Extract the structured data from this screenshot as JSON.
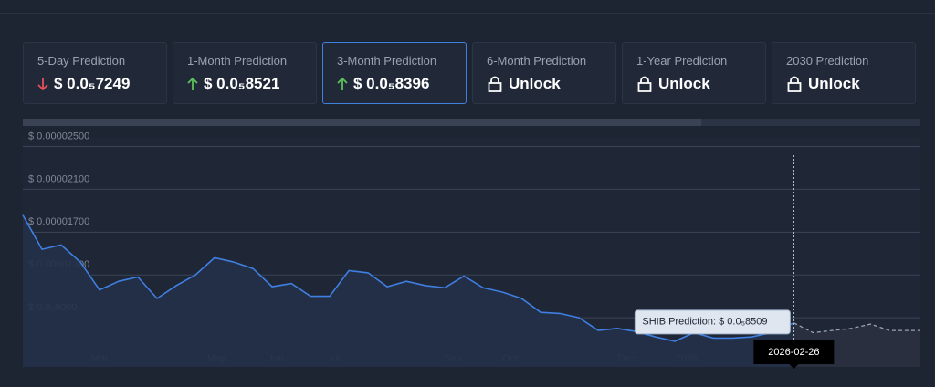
{
  "cards": [
    {
      "label": "5-Day Prediction",
      "value": "$ 0.0₅7249"
    },
    {
      "label": "1-Month Prediction",
      "value": "$ 0.0₅8521"
    },
    {
      "label": "3-Month Prediction",
      "value": "$ 0.0₅8396"
    },
    {
      "label": "6-Month Prediction",
      "value": "Unlock"
    },
    {
      "label": "1-Year Prediction",
      "value": "Unlock"
    },
    {
      "label": "2030 Prediction",
      "value": "Unlock"
    }
  ],
  "chart_data": {
    "type": "line",
    "xlim": [
      "2025-01-20",
      "2026-05-03"
    ],
    "xticks": [
      {
        "value": "2025-03-01",
        "label": "Mar"
      },
      {
        "value": "2025-05-01",
        "label": "May"
      },
      {
        "value": "2025-06-01",
        "label": "Jun"
      },
      {
        "value": "2025-07-01",
        "label": "Jul"
      },
      {
        "value": "2025-09-01",
        "label": "Sep"
      },
      {
        "value": "2025-10-01",
        "label": "Oct"
      },
      {
        "value": "2025-12-01",
        "label": "Dec"
      },
      {
        "value": "2026-01-01",
        "label": "2026"
      }
    ],
    "ylim": [
      4.4e-06,
      2.59e-05
    ],
    "yticks": [
      {
        "value": 2.5e-05,
        "label": "$ 0.00002500"
      },
      {
        "value": 2.1e-05,
        "label": "$ 0.00002100"
      },
      {
        "value": 1.7e-05,
        "label": "$ 0.00001700"
      },
      {
        "value": 1.3e-05,
        "label": "$ 0.00001300"
      },
      {
        "value": 9e-06,
        "label": "$ 0.0₅9000"
      }
    ],
    "grid": true,
    "series": [
      {
        "color": "#3f7fe0",
        "style": "solid",
        "area": true,
        "x": [
          "2025-01-20",
          "2025-01-30",
          "2025-02-09",
          "2025-02-19",
          "2025-03-01",
          "2025-03-11",
          "2025-03-21",
          "2025-03-31",
          "2025-04-10",
          "2025-04-20",
          "2025-04-30",
          "2025-05-10",
          "2025-05-20",
          "2025-05-30",
          "2025-06-09",
          "2025-06-19",
          "2025-06-29",
          "2025-07-09",
          "2025-07-19",
          "2025-07-29",
          "2025-08-08",
          "2025-08-18",
          "2025-08-28",
          "2025-09-07",
          "2025-09-17",
          "2025-09-27",
          "2025-10-07",
          "2025-10-17",
          "2025-10-27",
          "2025-11-06",
          "2025-11-16",
          "2025-11-26",
          "2025-12-06",
          "2025-12-16",
          "2025-12-26",
          "2026-01-05",
          "2026-01-15",
          "2026-01-25",
          "2026-02-04",
          "2026-02-14",
          "2026-02-26"
        ],
        "values": [
          1.86e-05,
          1.54e-05,
          1.58e-05,
          1.42e-05,
          1.16e-05,
          1.24e-05,
          1.28e-05,
          1.08e-05,
          1.2e-05,
          1.3e-05,
          1.46e-05,
          1.42e-05,
          1.36e-05,
          1.19e-05,
          1.22e-05,
          1.1e-05,
          1.1e-05,
          1.34e-05,
          1.32e-05,
          1.19e-05,
          1.24e-05,
          1.2e-05,
          1.18e-05,
          1.29e-05,
          1.18e-05,
          1.14e-05,
          1.08e-05,
          9.5e-06,
          9.4e-06,
          9e-06,
          7.8e-06,
          8e-06,
          7.7e-06,
          7.2e-06,
          6.8e-06,
          7.6e-06,
          7.1e-06,
          7.1e-06,
          7.2e-06,
          7.6e-06,
          8.509e-06
        ]
      },
      {
        "color": "#9aa3b2",
        "style": "dashed",
        "area": true,
        "x": [
          "2026-02-26",
          "2026-03-08",
          "2026-03-18",
          "2026-03-28",
          "2026-04-07",
          "2026-04-17",
          "2026-04-27",
          "2026-05-03"
        ],
        "values": [
          8.509e-06,
          7.6e-06,
          7.8e-06,
          8e-06,
          8.4e-06,
          7.8e-06,
          7.8e-06,
          7.8e-06
        ]
      }
    ],
    "tooltip": {
      "text": "SHIB Prediction: $ 0.0₅8509",
      "date": "2026-02-26"
    }
  }
}
